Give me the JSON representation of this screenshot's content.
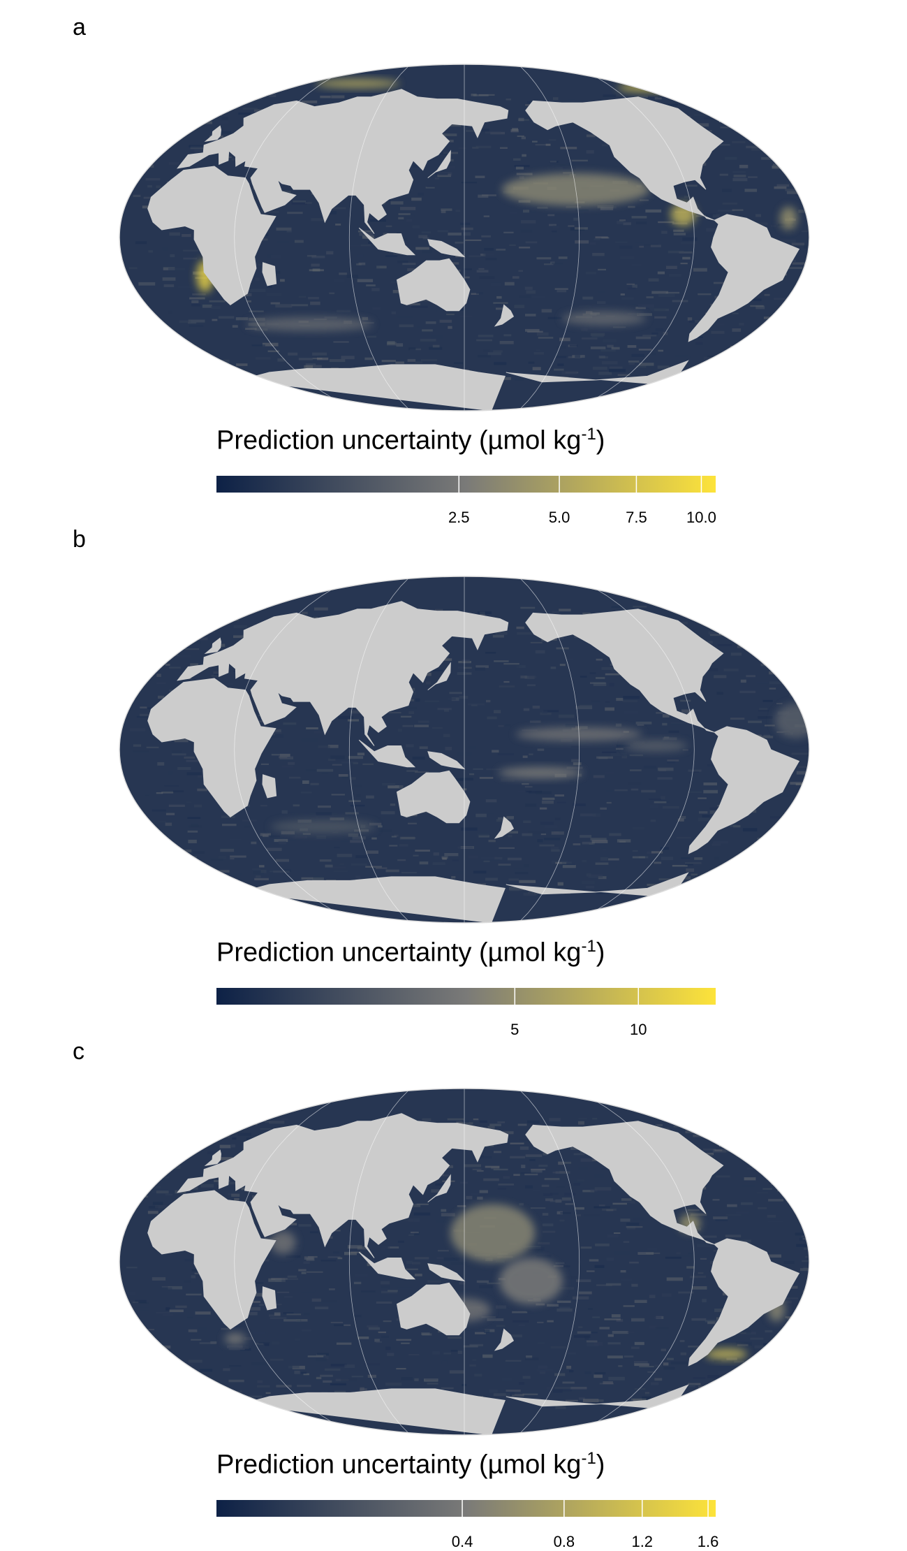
{
  "panels": [
    {
      "label": "a",
      "legend": {
        "title": "Prediction uncertainty (µmol kg",
        "title_sup": "-1",
        "title_end": ")"
      },
      "scale": {
        "min": 0,
        "max": 10.6,
        "ticks": [
          2.5,
          5.0,
          7.5,
          10.0
        ],
        "tick_labels": [
          "2.5",
          "5.0",
          "7.5",
          "10.0"
        ],
        "transform": "sqrt"
      },
      "hotspots": [
        {
          "lon": -150,
          "lat": 25,
          "level": 0.55,
          "w": 70,
          "h": 14
        },
        {
          "lon": -95,
          "lat": 12,
          "level": 0.75,
          "w": 12,
          "h": 10
        },
        {
          "lon": 12,
          "lat": -20,
          "level": 0.9,
          "w": 8,
          "h": 14
        },
        {
          "lon": -40,
          "lat": 10,
          "level": 0.6,
          "w": 8,
          "h": 10
        },
        {
          "lon": 60,
          "lat": -45,
          "level": 0.4,
          "w": 60,
          "h": 6
        },
        {
          "lon": -130,
          "lat": -42,
          "level": 0.4,
          "w": 40,
          "h": 6
        },
        {
          "lon": -60,
          "lat": 78,
          "level": 0.8,
          "w": 30,
          "h": 4
        },
        {
          "lon": 60,
          "lat": 80,
          "level": 0.7,
          "w": 40,
          "h": 4
        }
      ]
    },
    {
      "label": "b",
      "legend": {
        "title": "Prediction uncertainty (µmol kg",
        "title_sup": "-1",
        "title_end": ")"
      },
      "scale": {
        "min": 0,
        "max": 14,
        "ticks": [
          5,
          10
        ],
        "tick_labels": [
          "5",
          "10"
        ],
        "transform": "sqrt"
      },
      "hotspots": [
        {
          "lon": -150,
          "lat": 8,
          "level": 0.45,
          "w": 60,
          "h": 6
        },
        {
          "lon": -170,
          "lat": -12,
          "level": 0.5,
          "w": 40,
          "h": 5
        },
        {
          "lon": -110,
          "lat": 2,
          "level": 0.35,
          "w": 30,
          "h": 5
        },
        {
          "lon": -35,
          "lat": 15,
          "level": 0.35,
          "w": 20,
          "h": 15
        },
        {
          "lon": 70,
          "lat": -40,
          "level": 0.3,
          "w": 50,
          "h": 6
        }
      ]
    },
    {
      "label": "c",
      "legend": {
        "title": "Prediction uncertainty (µmol kg",
        "title_sup": "-1",
        "title_end": ")"
      },
      "scale": {
        "min": 0,
        "max": 1.65,
        "ticks": [
          0.4,
          0.8,
          1.2,
          1.6
        ],
        "tick_labels": [
          "0.4",
          "0.8",
          "1.2",
          "1.6"
        ],
        "transform": "sqrt"
      },
      "hotspots": [
        {
          "lon": 165,
          "lat": 15,
          "level": 0.55,
          "w": 40,
          "h": 25
        },
        {
          "lon": -175,
          "lat": -10,
          "level": 0.5,
          "w": 30,
          "h": 20
        },
        {
          "lon": 150,
          "lat": -25,
          "level": 0.45,
          "w": 25,
          "h": 10
        },
        {
          "lon": -90,
          "lat": 20,
          "level": 0.6,
          "w": 10,
          "h": 8
        },
        {
          "lon": 55,
          "lat": 10,
          "level": 0.45,
          "w": 12,
          "h": 10
        },
        {
          "lon": -42,
          "lat": -25,
          "level": 0.55,
          "w": 8,
          "h": 10
        },
        {
          "lon": -55,
          "lat": -48,
          "level": 0.75,
          "w": 20,
          "h": 5
        },
        {
          "lon": 20,
          "lat": -40,
          "level": 0.5,
          "w": 10,
          "h": 5
        }
      ]
    }
  ],
  "colors": {
    "low": "#0d2146",
    "mid": "#7a7a78",
    "high": "#fde33a",
    "land": "#cccccc",
    "graticule": "#ffffff"
  }
}
